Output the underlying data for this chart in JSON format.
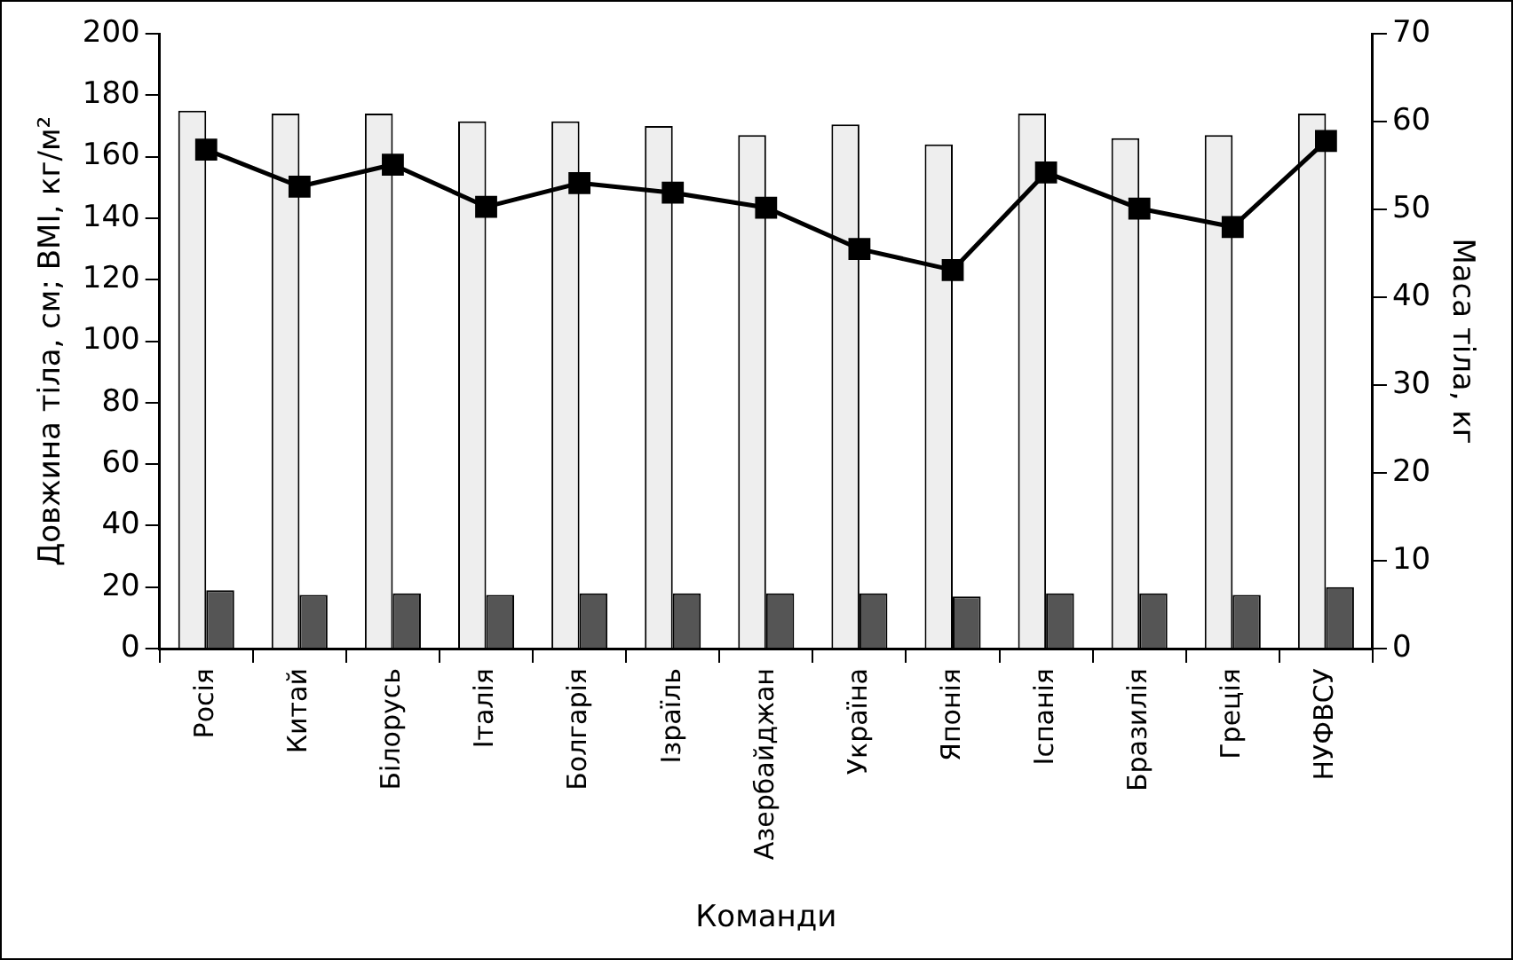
{
  "chart_data": {
    "type": "bar",
    "xlabel": "Команди",
    "ylabel": "Довжина тіла, см; BMI, кг/м²",
    "y2label": "Маса тіла, кг",
    "categories": [
      "Росія",
      "Китай",
      "Білорусь",
      "Італія",
      "Болгарія",
      "Ізраїль",
      "Азербайджан",
      "Україна",
      "Японія",
      "Іспанія",
      "Бразилія",
      "Греція",
      "НУФВСУ"
    ],
    "series": [
      {
        "color": "#eeeeee",
        "values": [
          175,
          174,
          174,
          171.5,
          171.5,
          170,
          167,
          170.5,
          164,
          174,
          166,
          167,
          174
        ]
      },
      {
        "color": "#555555",
        "values": [
          19,
          17.5,
          18,
          17.5,
          18,
          18,
          18,
          18,
          17,
          18,
          18,
          17.5,
          20
        ]
      },
      {
        "type": "line",
        "axis": "y2",
        "color": "#000000",
        "marker": "square",
        "values": [
          56.8,
          52.6,
          55.1,
          50.3,
          53.0,
          51.9,
          50.2,
          45.5,
          43.1,
          54.2,
          50.1,
          48.0,
          57.8
        ]
      }
    ],
    "ylim": [
      0,
      200
    ],
    "yticks": [
      0,
      20,
      40,
      60,
      80,
      100,
      120,
      140,
      160,
      180,
      200
    ],
    "y2lim": [
      0,
      70
    ],
    "y2ticks": [
      0,
      10,
      20,
      30,
      40,
      50,
      60,
      70
    ],
    "grid": false,
    "legend": false,
    "line_style": "solid"
  }
}
